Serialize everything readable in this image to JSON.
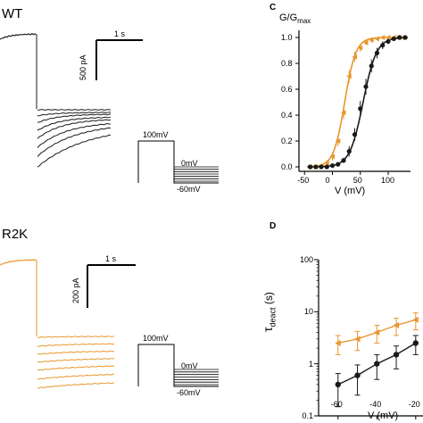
{
  "colors": {
    "wt": "#1a1a1a",
    "mutant": "#e8962e",
    "axis": "#000000"
  },
  "panel_wt": {
    "title": "WT",
    "scalebar_time": "1 s",
    "scalebar_current": "500 pA",
    "protocol": {
      "hold": "100mV",
      "mid": "0mV",
      "low": "-60mV"
    }
  },
  "panel_r2k": {
    "title": "R2K",
    "scalebar_time": "1 s",
    "scalebar_current": "200 pA",
    "protocol": {
      "hold": "100mV",
      "mid": "0mV",
      "low": "-60mV"
    }
  },
  "panel_c": {
    "letter": "C",
    "ylabel_main": "G/G",
    "ylabel_sub": "max",
    "xlabel": "V (mV)",
    "xticks": [
      "-50",
      "0",
      "50",
      "100"
    ],
    "yticks": [
      "0.0",
      "0.2",
      "0.4",
      "0.6",
      "0.8",
      "1.0"
    ]
  },
  "panel_d": {
    "letter": "D",
    "ylabel_main": "τ",
    "ylabel_sub": "deact",
    "ylabel_unit": " (s)",
    "xlabel": "V (mV)",
    "xticks": [
      "-60",
      "-40",
      "-20"
    ],
    "yticks": [
      "100",
      "10",
      "1",
      "0.1"
    ]
  },
  "chart_data": [
    {
      "type": "scatter",
      "xlabel": "V (mV)",
      "ylabel": "G/Gmax",
      "xlim": [
        -60,
        140
      ],
      "ylim": [
        0,
        1.05
      ],
      "series": [
        {
          "color": "#e8962e",
          "marker": "triangle",
          "x": [
            -40,
            -30,
            -20,
            -10,
            0,
            10,
            20,
            30,
            40,
            50,
            60,
            70,
            80,
            90,
            100,
            110,
            120,
            130
          ],
          "y": [
            0.0,
            0.0,
            0.01,
            0.03,
            0.08,
            0.2,
            0.42,
            0.7,
            0.85,
            0.92,
            0.96,
            0.98,
            0.99,
            1.0,
            1.0,
            1.0,
            1.0,
            1.0
          ],
          "err": [
            0,
            0,
            0.01,
            0.02,
            0.03,
            0.04,
            0.05,
            0.05,
            0.04,
            0.03,
            0.02,
            0.02,
            0.01,
            0.01,
            0.01,
            0,
            0,
            0
          ]
        },
        {
          "color": "#1a1a1a",
          "marker": "circle",
          "x": [
            -40,
            -30,
            -20,
            -10,
            0,
            10,
            20,
            30,
            40,
            50,
            60,
            70,
            80,
            90,
            100,
            110,
            120,
            130
          ],
          "y": [
            0.0,
            0.0,
            0.0,
            0.0,
            0.01,
            0.02,
            0.05,
            0.12,
            0.25,
            0.45,
            0.62,
            0.78,
            0.88,
            0.94,
            0.97,
            0.99,
            1.0,
            1.0
          ],
          "err": [
            0,
            0,
            0,
            0,
            0.01,
            0.01,
            0.02,
            0.04,
            0.05,
            0.06,
            0.06,
            0.05,
            0.04,
            0.03,
            0.02,
            0.01,
            0,
            0
          ]
        }
      ]
    },
    {
      "type": "scatter",
      "xlabel": "V (mV)",
      "ylabel": "τdeact (s)",
      "yscale": "log",
      "xlim": [
        -70,
        -20
      ],
      "ylim": [
        0.1,
        100
      ],
      "series": [
        {
          "color": "#e8962e",
          "marker": "triangle",
          "x": [
            -60,
            -50,
            -40,
            -30,
            -20
          ],
          "y": [
            2.5,
            3.0,
            4.0,
            5.5,
            7.0
          ],
          "err": [
            1.0,
            1.2,
            1.5,
            2.0,
            2.5
          ]
        },
        {
          "color": "#1a1a1a",
          "marker": "circle",
          "x": [
            -60,
            -50,
            -40,
            -30,
            -20
          ],
          "y": [
            0.4,
            0.6,
            1.0,
            1.5,
            2.5
          ],
          "err": [
            0.25,
            0.35,
            0.5,
            0.7,
            1.0
          ]
        }
      ]
    }
  ]
}
